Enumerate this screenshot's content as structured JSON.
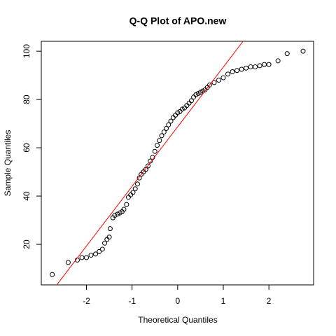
{
  "chart_data": {
    "type": "scatter",
    "title": "Q-Q Plot of APO.new",
    "x_label": "Theoretical Quantiles",
    "y_label": "Sample Quantiles",
    "x": [
      -2.75,
      -2.4,
      -2.2,
      -2.1,
      -2.0,
      -1.9,
      -1.8,
      -1.72,
      -1.65,
      -1.6,
      -1.55,
      -1.5,
      -1.48,
      -1.42,
      -1.38,
      -1.32,
      -1.27,
      -1.22,
      -1.18,
      -1.12,
      -1.08,
      -1.03,
      -0.98,
      -0.93,
      -0.88,
      -0.84,
      -0.8,
      -0.75,
      -0.7,
      -0.65,
      -0.6,
      -0.55,
      -0.5,
      -0.45,
      -0.4,
      -0.35,
      -0.3,
      -0.25,
      -0.2,
      -0.15,
      -0.1,
      -0.05,
      0,
      0.05,
      0.1,
      0.15,
      0.2,
      0.25,
      0.3,
      0.35,
      0.4,
      0.45,
      0.5,
      0.55,
      0.6,
      0.65,
      0.7,
      0.8,
      0.9,
      1.0,
      1.1,
      1.2,
      1.3,
      1.4,
      1.5,
      1.6,
      1.7,
      1.8,
      1.9,
      2.0,
      2.2,
      2.4,
      2.75
    ],
    "values": [
      7.5,
      12.5,
      13.5,
      14.5,
      14.5,
      15.5,
      16,
      17,
      18,
      20.5,
      22,
      23,
      26.5,
      31,
      32,
      32.5,
      33,
      33.5,
      34.5,
      36.5,
      39.5,
      40.5,
      41.5,
      43,
      45,
      47.5,
      49,
      50,
      51,
      52.5,
      54.5,
      56,
      58.5,
      61,
      63,
      65,
      66.5,
      68,
      69.5,
      71,
      72.5,
      73.5,
      74.5,
      75,
      76,
      76.5,
      77.5,
      78.5,
      79.5,
      81,
      82,
      82.5,
      83,
      83.5,
      84,
      85,
      86,
      87,
      88,
      89,
      90.5,
      91.5,
      92,
      92.5,
      93,
      93.5,
      93.5,
      94,
      94.5,
      94.5,
      96,
      99,
      100
    ],
    "color": "#000000",
    "reference_line": {
      "intercept": 68.7,
      "slope": 24.7,
      "color": "#ff0000"
    },
    "xlim": [
      -2.99,
      2.98
    ],
    "xticks": [
      -2,
      -1,
      0,
      1,
      2
    ],
    "ylim": [
      3.2,
      104.1
    ],
    "yticks": [
      20,
      40,
      60,
      80,
      100
    ]
  }
}
